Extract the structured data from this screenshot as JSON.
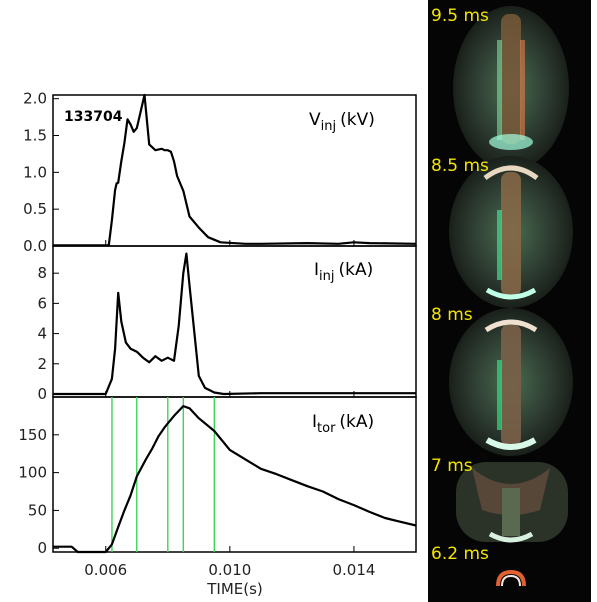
{
  "chart_data": {
    "type": "line",
    "shot": "133704",
    "xlabel": "TIME(s)",
    "xlim": [
      0.0043,
      0.016
    ],
    "xticks": [
      "0.006",
      "0.010",
      "0.014"
    ],
    "marker_times": [
      0.0062,
      0.007,
      0.008,
      0.0085,
      0.0095
    ],
    "marker_color": "#3fd35a",
    "panels": [
      {
        "name": "V",
        "sub": "inj",
        "unit": "(kV)",
        "ylim": [
          0,
          2.05
        ],
        "yticks": [
          "0.0",
          "0.5",
          "1.0",
          "1.5",
          "2.0"
        ],
        "x": [
          0.0043,
          0.0061,
          0.0062,
          0.0063,
          0.00635,
          0.0064,
          0.0065,
          0.0066,
          0.0067,
          0.0068,
          0.0069,
          0.007,
          0.0071,
          0.00725,
          0.0074,
          0.0076,
          0.0078,
          0.0079,
          0.008,
          0.0081,
          0.0082,
          0.0083,
          0.0085,
          0.0087,
          0.009,
          0.0093,
          0.0097,
          0.0105,
          0.011,
          0.0125,
          0.0135,
          0.014,
          0.0145,
          0.016
        ],
        "y": [
          0.01,
          0.01,
          0.35,
          0.76,
          0.85,
          0.86,
          1.15,
          1.4,
          1.72,
          1.65,
          1.55,
          1.6,
          1.78,
          2.05,
          1.38,
          1.3,
          1.32,
          1.3,
          1.3,
          1.28,
          1.15,
          0.95,
          0.75,
          0.4,
          0.25,
          0.12,
          0.05,
          0.03,
          0.03,
          0.04,
          0.03,
          0.05,
          0.04,
          0.03
        ]
      },
      {
        "name": "I",
        "sub": "inj",
        "unit": "(kA)",
        "ylim": [
          -0.2,
          9.8
        ],
        "yticks": [
          "0",
          "2",
          "4",
          "6",
          "8"
        ],
        "x": [
          0.0043,
          0.006,
          0.0062,
          0.0063,
          0.0064,
          0.0065,
          0.00665,
          0.0068,
          0.007,
          0.0072,
          0.0074,
          0.0076,
          0.0078,
          0.008,
          0.0082,
          0.00835,
          0.0085,
          0.0086,
          0.0087,
          0.0089,
          0.009,
          0.0092,
          0.0095,
          0.0098,
          0.011,
          0.0135,
          0.016
        ],
        "y": [
          0.0,
          0.0,
          1.0,
          3.0,
          6.7,
          4.8,
          3.4,
          3.0,
          2.8,
          2.4,
          2.1,
          2.5,
          2.2,
          2.4,
          2.2,
          4.5,
          8.0,
          9.3,
          7.2,
          3.2,
          1.2,
          0.4,
          0.1,
          0.0,
          0.05,
          0.05,
          0.05
        ]
      },
      {
        "name": "I",
        "sub": "tor",
        "unit": "(kA)",
        "ylim": [
          -5,
          200
        ],
        "yticks": [
          "0",
          "50",
          "100",
          "150"
        ],
        "x": [
          0.0043,
          0.0049,
          0.0051,
          0.006,
          0.0062,
          0.0064,
          0.0066,
          0.0068,
          0.007,
          0.0073,
          0.0075,
          0.0077,
          0.0079,
          0.0082,
          0.0085,
          0.0087,
          0.009,
          0.0095,
          0.01,
          0.0106,
          0.011,
          0.0115,
          0.012,
          0.0125,
          0.013,
          0.0135,
          0.014,
          0.0145,
          0.015,
          0.0155,
          0.016
        ],
        "y": [
          2,
          2,
          -5,
          -5,
          5,
          28,
          50,
          70,
          95,
          118,
          132,
          148,
          160,
          175,
          188,
          185,
          172,
          155,
          130,
          115,
          105,
          98,
          90,
          82,
          75,
          65,
          57,
          48,
          40,
          35,
          30
        ]
      }
    ],
    "image_strip": {
      "frames": [
        {
          "label": "9.5 ms"
        },
        {
          "label": "8.5 ms"
        },
        {
          "label": "8 ms"
        },
        {
          "label": "7 ms"
        },
        {
          "label": "6.2 ms"
        }
      ]
    }
  }
}
